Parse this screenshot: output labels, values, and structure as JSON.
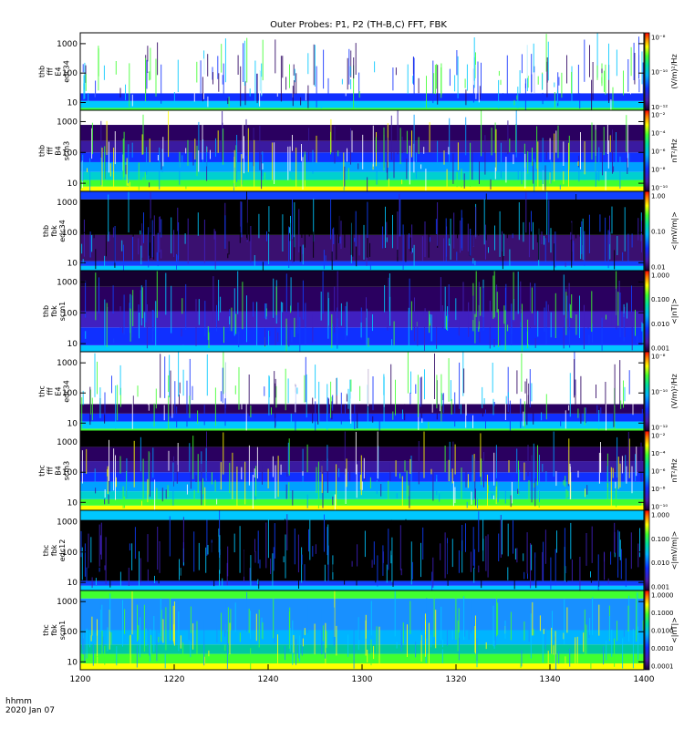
{
  "chart_data": {
    "type": "heatmap",
    "title": "Outer Probes: P1, P2 (TH-B,C) FFT, FBK",
    "x_ticks": [
      "1200",
      "1220",
      "1240",
      "1300",
      "1320",
      "1340",
      "1400"
    ],
    "x_label": [
      "hhmm",
      "2020 Jan 07"
    ],
    "panels": [
      {
        "id": "thb-fff-edc34",
        "label": [
          "thb",
          "fff",
          "E4",
          "edc34"
        ],
        "y_ticks": [
          "10",
          "100",
          "1000"
        ],
        "colorbar_ticks": [
          "10⁻¹²",
          "10⁻¹⁰",
          "10⁻⁸"
        ],
        "colorbar_label": "(V/m)²/Hz"
      },
      {
        "id": "thb-fff-scm3",
        "label": [
          "thb",
          "fff",
          "B4",
          "scm3"
        ],
        "y_ticks": [
          "10",
          "100",
          "1000"
        ],
        "colorbar_ticks": [
          "10⁻¹⁰",
          "10⁻⁸",
          "10⁻⁶",
          "10⁻⁴",
          "10⁻²"
        ],
        "colorbar_label": "nT²/Hz"
      },
      {
        "id": "thb-fbk-edc34",
        "label": [
          "thb",
          "fbk",
          "edc34"
        ],
        "y_ticks": [
          "10",
          "100",
          "1000"
        ],
        "colorbar_ticks": [
          "0.01",
          "0.10",
          "1.00"
        ],
        "colorbar_label": "<|mV/m|>"
      },
      {
        "id": "thb-fbk-scm1",
        "label": [
          "thb",
          "fbk",
          "scm1"
        ],
        "y_ticks": [
          "10",
          "100",
          "1000"
        ],
        "colorbar_ticks": [
          "0.001",
          "0.010",
          "0.100",
          "1.000"
        ],
        "colorbar_label": "<|nT|>"
      },
      {
        "id": "thc-fff-edc34",
        "label": [
          "thc",
          "fff",
          "E4",
          "edc34"
        ],
        "y_ticks": [
          "10",
          "100",
          "1000"
        ],
        "colorbar_ticks": [
          "10⁻¹²",
          "10⁻¹⁰",
          "10⁻⁸"
        ],
        "colorbar_label": "(V/m)²/Hz"
      },
      {
        "id": "thc-fff-scm3",
        "label": [
          "thc",
          "fff",
          "B4",
          "scm3"
        ],
        "y_ticks": [
          "10",
          "100",
          "1000"
        ],
        "colorbar_ticks": [
          "10⁻¹⁰",
          "10⁻⁸",
          "10⁻⁶",
          "10⁻⁴",
          "10⁻²"
        ],
        "colorbar_label": "nT²/Hz"
      },
      {
        "id": "thc-fbk-edc12",
        "label": [
          "thc",
          "fbk",
          "edc12"
        ],
        "y_ticks": [
          "10",
          "100",
          "1000"
        ],
        "colorbar_ticks": [
          "0.001",
          "0.010",
          "0.100",
          "1.000"
        ],
        "colorbar_label": "<|mV/m|>"
      },
      {
        "id": "thc-fbk-scm1",
        "label": [
          "thc",
          "fbk",
          "scm1"
        ],
        "y_ticks": [
          "10",
          "100",
          "1000"
        ],
        "colorbar_ticks": [
          "0.0001",
          "0.0010",
          "0.0100",
          "0.1000",
          "1.0000"
        ],
        "colorbar_label": "<|nT|>"
      }
    ]
  }
}
